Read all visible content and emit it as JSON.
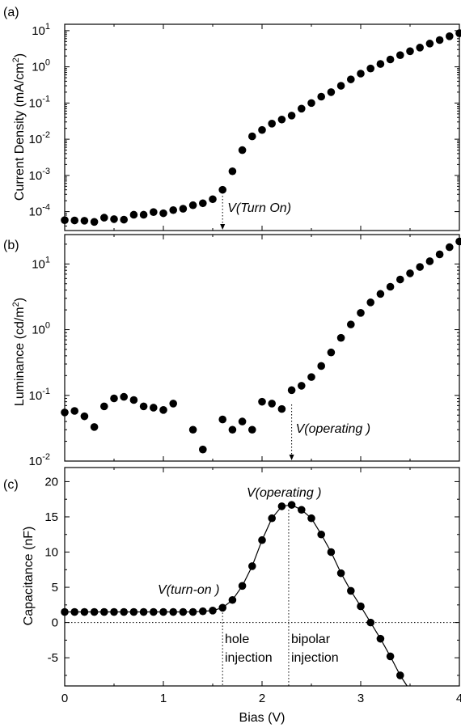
{
  "chart_data": [
    {
      "panel_label": "(a)",
      "type": "scatter",
      "yscale": "log",
      "xlim": [
        0,
        4
      ],
      "ylim": [
        3e-05,
        15
      ],
      "ylabel_main": "Current Density (mA/cm",
      "ylabel_sup": "2",
      "ylabel_end": ")",
      "yticks": [
        {
          "value": 0.0001,
          "base": "10",
          "exp": "-4"
        },
        {
          "value": 0.001,
          "base": "10",
          "exp": "-3"
        },
        {
          "value": 0.01,
          "base": "10",
          "exp": "-2"
        },
        {
          "value": 0.1,
          "base": "10",
          "exp": "-1"
        },
        {
          "value": 1,
          "base": "10",
          "exp": "0"
        },
        {
          "value": 10,
          "base": "10",
          "exp": "1"
        }
      ],
      "x": [
        0.0,
        0.1,
        0.2,
        0.3,
        0.4,
        0.5,
        0.6,
        0.7,
        0.8,
        0.9,
        1.0,
        1.1,
        1.2,
        1.3,
        1.4,
        1.5,
        1.6,
        1.7,
        1.8,
        1.9,
        2.0,
        2.1,
        2.2,
        2.3,
        2.4,
        2.5,
        2.6,
        2.7,
        2.8,
        2.9,
        3.0,
        3.1,
        3.2,
        3.3,
        3.4,
        3.5,
        3.6,
        3.7,
        3.8,
        3.9,
        4.0
      ],
      "y": [
        5.8e-05,
        5.7e-05,
        5.6e-05,
        5.2e-05,
        6.8e-05,
        6.2e-05,
        6e-05,
        8.2e-05,
        8.2e-05,
        9.7e-05,
        9e-05,
        0.00011,
        0.00012,
        0.00015,
        0.00017,
        0.00022,
        0.0004,
        0.0013,
        0.005,
        0.012,
        0.018,
        0.027,
        0.035,
        0.045,
        0.07,
        0.1,
        0.15,
        0.2,
        0.3,
        0.45,
        0.65,
        0.9,
        1.2,
        1.6,
        2.1,
        2.7,
        3.4,
        4.4,
        5.5,
        7.0,
        8.5
      ],
      "annotation": {
        "text": "V(Turn On)",
        "x": 1.6
      }
    },
    {
      "panel_label": "(b)",
      "type": "scatter",
      "yscale": "log",
      "xlim": [
        0,
        4
      ],
      "ylim": [
        0.01,
        28
      ],
      "ylabel_main": "Luminance (cd/m",
      "ylabel_sup": "2",
      "ylabel_end": ")",
      "yticks": [
        {
          "value": 0.01,
          "base": "10",
          "exp": "-2"
        },
        {
          "value": 0.1,
          "base": "10",
          "exp": "-1"
        },
        {
          "value": 1,
          "base": "10",
          "exp": "0"
        },
        {
          "value": 10,
          "base": "10",
          "exp": "1"
        }
      ],
      "x": [
        0.0,
        0.1,
        0.2,
        0.3,
        0.4,
        0.5,
        0.6,
        0.7,
        0.8,
        0.9,
        1.0,
        1.1,
        1.3,
        1.4,
        1.6,
        1.7,
        1.8,
        1.9,
        2.0,
        2.1,
        2.2,
        2.3,
        2.4,
        2.5,
        2.6,
        2.7,
        2.8,
        2.9,
        3.0,
        3.1,
        3.2,
        3.3,
        3.4,
        3.5,
        3.6,
        3.7,
        3.8,
        3.9,
        4.0
      ],
      "y": [
        0.055,
        0.058,
        0.048,
        0.033,
        0.068,
        0.09,
        0.095,
        0.085,
        0.068,
        0.065,
        0.06,
        0.075,
        0.03,
        0.015,
        0.043,
        0.03,
        0.04,
        0.03,
        0.08,
        0.075,
        0.062,
        0.12,
        0.14,
        0.19,
        0.28,
        0.45,
        0.75,
        1.2,
        1.8,
        2.6,
        3.5,
        4.5,
        5.8,
        7.2,
        9.0,
        11.0,
        14.0,
        18.0,
        22.0
      ],
      "annotation": {
        "text": "V(operating )",
        "x": 2.3
      }
    },
    {
      "panel_label": "(c)",
      "type": "line",
      "yscale": "linear",
      "xlim": [
        0,
        4
      ],
      "ylim": [
        -9,
        22
      ],
      "xlabel": "Bias (V)",
      "ylabel": "Capacitance (nF)",
      "xticks": [
        "0",
        "1",
        "2",
        "3",
        "4"
      ],
      "yticks": [
        "-5",
        "0",
        "5",
        "10",
        "15",
        "20"
      ],
      "x": [
        0.0,
        0.1,
        0.2,
        0.3,
        0.4,
        0.5,
        0.6,
        0.7,
        0.8,
        0.9,
        1.0,
        1.1,
        1.2,
        1.3,
        1.4,
        1.5,
        1.6,
        1.7,
        1.8,
        1.9,
        2.0,
        2.1,
        2.2,
        2.3,
        2.4,
        2.5,
        2.6,
        2.7,
        2.8,
        2.9,
        3.0,
        3.1,
        3.2,
        3.3,
        3.4
      ],
      "y": [
        1.5,
        1.5,
        1.5,
        1.5,
        1.5,
        1.5,
        1.5,
        1.5,
        1.5,
        1.5,
        1.5,
        1.5,
        1.5,
        1.5,
        1.6,
        1.7,
        2.1,
        3.2,
        5.2,
        8.0,
        11.7,
        14.8,
        16.5,
        16.7,
        16.0,
        14.8,
        12.5,
        10.0,
        7.0,
        4.5,
        2.3,
        0.0,
        -2.3,
        -4.8,
        -7.5
      ],
      "zero_line": true,
      "annotations": [
        {
          "text": "V(turn-on )",
          "x": 1.6
        },
        {
          "text": "V(operating )",
          "x": 2.3
        }
      ],
      "region_labels": [
        {
          "line1": "hole",
          "line2": "injection"
        },
        {
          "line1": "bipolar",
          "line2": "injection"
        }
      ]
    }
  ]
}
